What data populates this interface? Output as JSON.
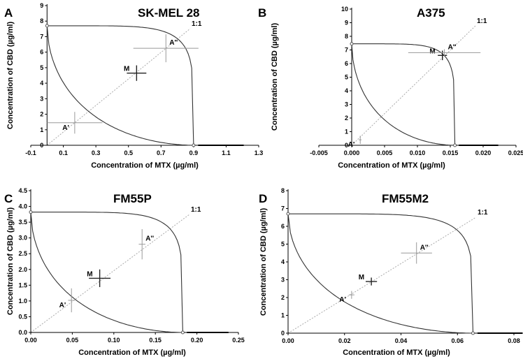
{
  "chart_data": [
    {
      "type": "isobologram",
      "panel_letter": "A",
      "title": "SK-MEL 28",
      "xlabel": "Concentration of MTX (µg/ml)",
      "ylabel": "Concentration of CBD (µg/ml)",
      "xlim": [
        -0.1,
        1.3
      ],
      "ylim": [
        0,
        9
      ],
      "xticks": [
        "-0.1",
        "0.1",
        "0.3",
        "0.5",
        "0.7",
        "0.9",
        "1.1",
        "1.3"
      ],
      "yticks": [
        "0",
        "1",
        "2",
        "3",
        "4",
        "5",
        "6",
        "7",
        "8",
        "9"
      ],
      "xtick_values": [
        -0.1,
        0.1,
        0.3,
        0.5,
        0.7,
        0.9,
        1.1,
        1.3
      ],
      "ytick_values": [
        0,
        1,
        2,
        3,
        4,
        5,
        6,
        7,
        8,
        9
      ],
      "diagonal_label": "1:1",
      "x_intercept": 0.9,
      "y_intercept": 7.7,
      "points": [
        {
          "label": "A'",
          "x": 0.17,
          "y": 1.45,
          "xerr": 0.17,
          "yerr": 0.7
        },
        {
          "label": "M",
          "x": 0.55,
          "y": 4.65,
          "xerr": 0.06,
          "yerr": 0.5
        },
        {
          "label": "A''",
          "x": 0.73,
          "y": 6.25,
          "xerr": 0.2,
          "yerr": 0.9
        }
      ]
    },
    {
      "type": "isobologram",
      "panel_letter": "B",
      "title": "A375",
      "xlabel": "Concentration of MTX (µg/ml)",
      "ylabel": "Concentration of CBD (µg/ml)",
      "xlim": [
        -0.005,
        0.025
      ],
      "ylim": [
        0,
        10
      ],
      "xticks": [
        "-0.005",
        "0.000",
        "0.005",
        "0.010",
        "0.015",
        "0.020",
        "0.025"
      ],
      "yticks": [
        "0",
        "1",
        "2",
        "3",
        "4",
        "5",
        "6",
        "7",
        "8",
        "9",
        "10"
      ],
      "xtick_values": [
        -0.005,
        0,
        0.005,
        0.01,
        0.015,
        0.02,
        0.025
      ],
      "ytick_values": [
        0,
        1,
        2,
        3,
        4,
        5,
        6,
        7,
        8,
        9,
        10
      ],
      "diagonal_label": "1:1",
      "x_intercept": 0.0157,
      "y_intercept": 7.45,
      "points": [
        {
          "label": "A'",
          "x": 0.0013,
          "y": 0.4,
          "xerr": 0.0002,
          "yerr": 0.3
        },
        {
          "label": "M",
          "x": 0.0138,
          "y": 6.6,
          "xerr": 0.0007,
          "yerr": 0.35
        },
        {
          "label": "A''",
          "x": 0.0141,
          "y": 6.8,
          "xerr": 0.0055,
          "yerr": 0.25
        }
      ]
    },
    {
      "type": "isobologram",
      "panel_letter": "C",
      "title": "FM55P",
      "xlabel": "Concentration of MTX (µg/ml)",
      "ylabel": "Concentration of CBD (µg/ml)",
      "xlim": [
        0,
        0.25
      ],
      "ylim": [
        0,
        4.5
      ],
      "xticks": [
        "0.00",
        "0.05",
        "0.10",
        "0.15",
        "0.20",
        "0.25"
      ],
      "yticks": [
        "0.0",
        "0.5",
        "1.0",
        "1.5",
        "2.0",
        "2.5",
        "3.0",
        "3.5",
        "4.0",
        "4.5"
      ],
      "xtick_values": [
        0,
        0.05,
        0.1,
        0.15,
        0.2,
        0.25
      ],
      "ytick_values": [
        0,
        0.5,
        1,
        1.5,
        2,
        2.5,
        3,
        3.5,
        4,
        4.5
      ],
      "diagonal_label": "1:1",
      "x_intercept": 0.183,
      "y_intercept": 3.82,
      "points": [
        {
          "label": "A'",
          "x": 0.049,
          "y": 1.02,
          "xerr": 0.004,
          "yerr": 0.38
        },
        {
          "label": "M",
          "x": 0.083,
          "y": 1.72,
          "xerr": 0.013,
          "yerr": 0.28
        },
        {
          "label": "A''",
          "x": 0.134,
          "y": 2.8,
          "xerr": 0.004,
          "yerr": 0.48
        }
      ]
    },
    {
      "type": "isobologram",
      "panel_letter": "D",
      "title": "FM55M2",
      "xlabel": "Concentration of MTX (µg/ml)",
      "ylabel": "Concentration of CBD (µg/ml)",
      "xlim": [
        0,
        0.08
      ],
      "ylim": [
        0,
        8
      ],
      "xticks": [
        "0.00",
        "0.02",
        "0.04",
        "0.06",
        "0.08"
      ],
      "yticks": [
        "0",
        "1",
        "2",
        "3",
        "4",
        "5",
        "6",
        "7",
        "8"
      ],
      "xtick_values": [
        0,
        0.02,
        0.04,
        0.06,
        0.08
      ],
      "ytick_values": [
        0,
        1,
        2,
        3,
        4,
        5,
        6,
        7,
        8
      ],
      "diagonal_label": "1:1",
      "x_intercept": 0.0655,
      "y_intercept": 6.7,
      "points": [
        {
          "label": "A'",
          "x": 0.0225,
          "y": 2.15,
          "xerr": 0.001,
          "yerr": 0.22
        },
        {
          "label": "M",
          "x": 0.0295,
          "y": 2.9,
          "xerr": 0.002,
          "yerr": 0.22
        },
        {
          "label": "A''",
          "x": 0.0455,
          "y": 4.5,
          "xerr": 0.0055,
          "yerr": 0.6
        }
      ]
    }
  ]
}
